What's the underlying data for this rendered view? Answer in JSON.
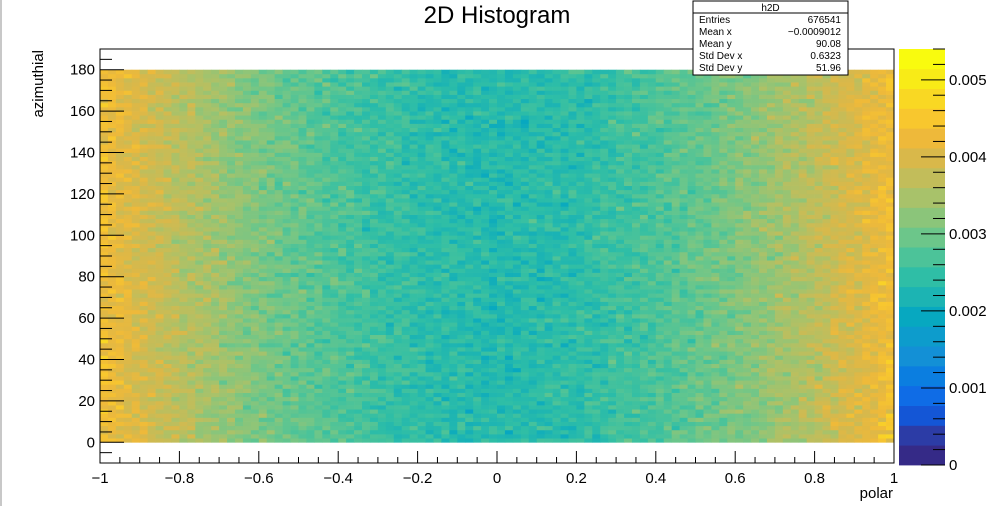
{
  "chart_data": {
    "type": "heatmap",
    "title": "2D Histogram",
    "xlabel": "polar",
    "ylabel": "azimuthial",
    "xlim": [
      -1,
      1
    ],
    "ylim": [
      -10,
      190
    ],
    "x_range_filled": [
      -1,
      1
    ],
    "y_range_filled": [
      0,
      180
    ],
    "x_ticks": [
      -1,
      -0.8,
      -0.6,
      -0.4,
      -0.2,
      0,
      0.2,
      0.4,
      0.6,
      0.8,
      1
    ],
    "x_tick_labels": [
      "−1",
      "−0.8",
      "−0.6",
      "−0.4",
      "−0.2",
      "0",
      "0.2",
      "0.4",
      "0.6",
      "0.8",
      "1"
    ],
    "y_ticks": [
      0,
      20,
      40,
      60,
      80,
      100,
      120,
      140,
      160,
      180
    ],
    "y_tick_labels": [
      "0",
      "20",
      "40",
      "60",
      "80",
      "100",
      "120",
      "140",
      "160",
      "180"
    ],
    "colorbar_range": [
      0,
      0.0054
    ],
    "colorbar_ticks": [
      0,
      0.001,
      0.002,
      0.003,
      0.004,
      0.005
    ],
    "colorbar_tick_labels": [
      "0",
      "0.001",
      "0.002",
      "0.003",
      "0.004",
      "0.005"
    ],
    "bins_x": 100,
    "bins_y": 90,
    "density_profile": {
      "description_x": "density vs polar, uniform in azimuthial",
      "x": [
        -1,
        -0.8,
        -0.6,
        -0.4,
        -0.2,
        0,
        0.2,
        0.4,
        0.6,
        0.8,
        1
      ],
      "values": [
        0.0044,
        0.0037,
        0.0031,
        0.0027,
        0.0024,
        0.0023,
        0.0024,
        0.0027,
        0.0031,
        0.0037,
        0.0044
      ]
    },
    "stats": {
      "name": "h2D",
      "rows": [
        {
          "label": "Entries",
          "value": "676541"
        },
        {
          "label": "Mean x",
          "value": "−0.0009012"
        },
        {
          "label": "Mean y",
          "value": "90.08"
        },
        {
          "label": "Std Dev x",
          "value": "0.6323"
        },
        {
          "label": "Std Dev y",
          "value": "51.96"
        }
      ]
    },
    "palette": [
      "#352a87",
      "#2c3ca6",
      "#1456d6",
      "#0f6ce6",
      "#0b7ee0",
      "#1390d6",
      "#0d9ccc",
      "#07a8c0",
      "#1cb4b3",
      "#2fbea6",
      "#4cc399",
      "#6cc68a",
      "#8bc57a",
      "#a8c26a",
      "#c2bd5a",
      "#d9b84a",
      "#eeb93a",
      "#f8c72e",
      "#f9d823",
      "#f8eb17",
      "#f9fb0e"
    ]
  }
}
